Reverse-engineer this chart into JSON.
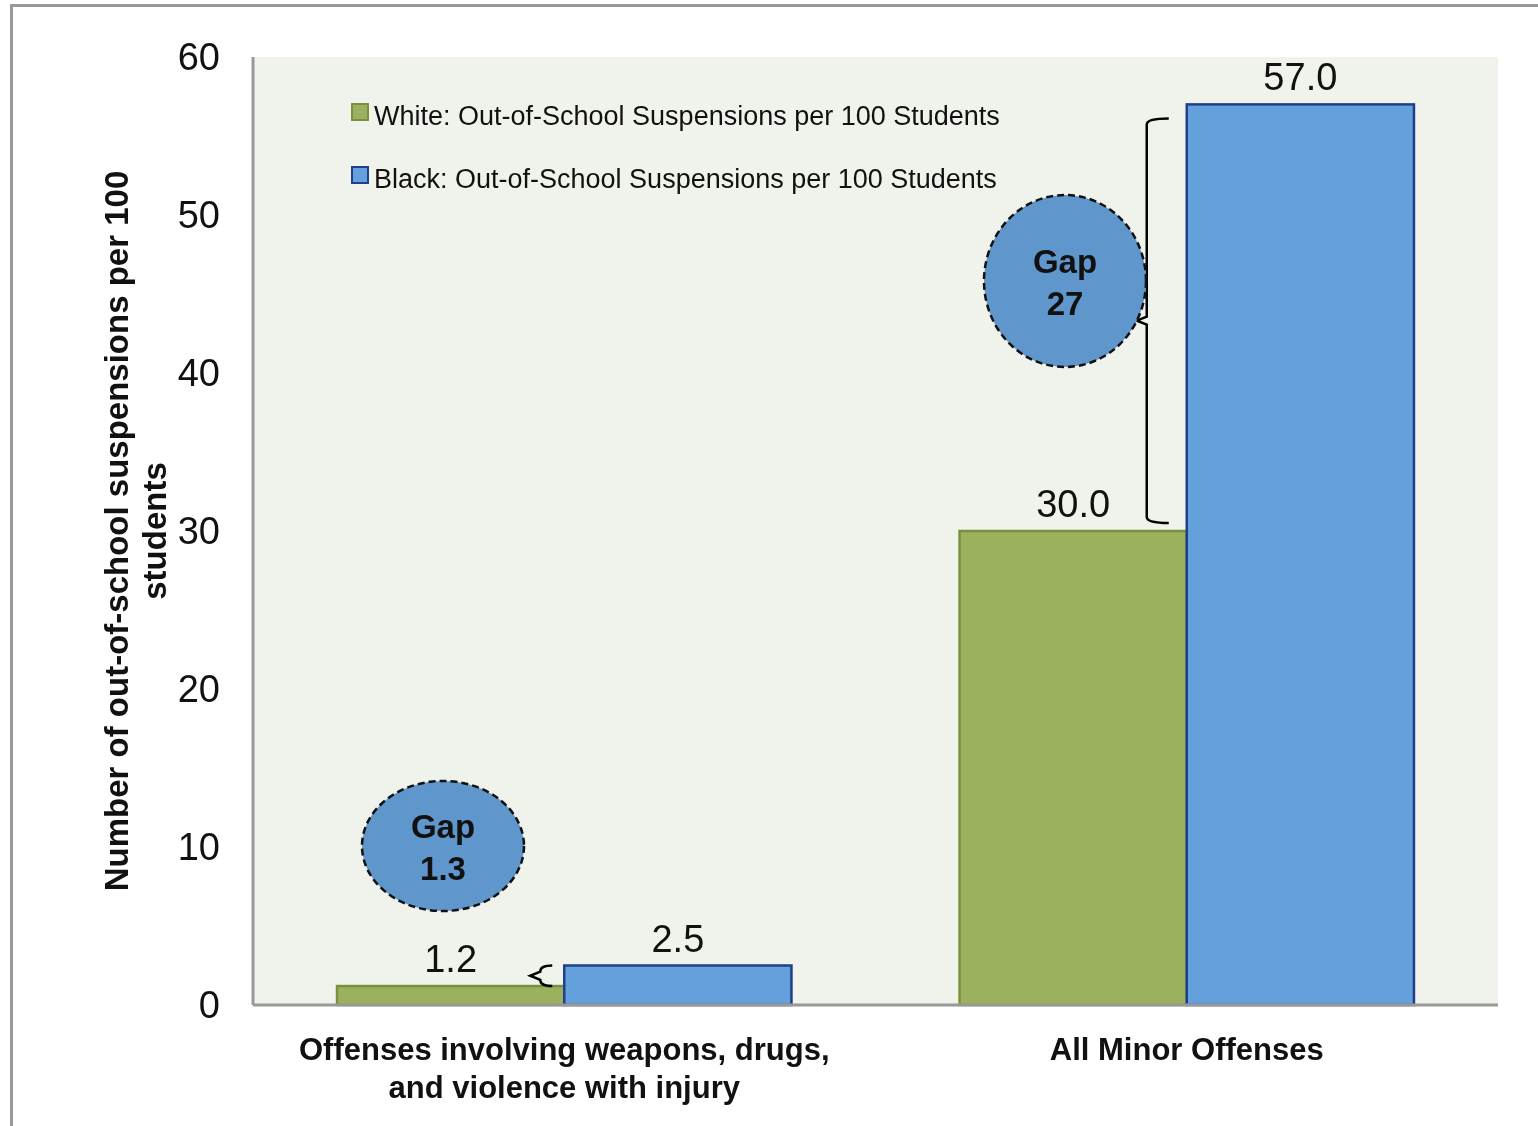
{
  "chart_data": {
    "type": "bar",
    "ylabel": "Number of out-of-school suspensions per 100 students",
    "categories": [
      "Offenses involving weapons, drugs, and violence with injury",
      "All Minor Offenses"
    ],
    "series": [
      {
        "name": "White: Out-of-School Suspensions per 100 Students",
        "color": "#9bb15e",
        "values": [
          1.2,
          30.0
        ],
        "value_labels": [
          "1.2",
          "30.0"
        ]
      },
      {
        "name": "Black: Out-of-School Suspensions per 100 Students",
        "color": "#63a0dc",
        "values": [
          2.5,
          57.0
        ],
        "value_labels": [
          "2.5",
          "57.0"
        ]
      }
    ],
    "ylim": [
      0,
      60
    ],
    "yticks": [
      0,
      10,
      20,
      30,
      40,
      50,
      60
    ],
    "grid": false,
    "legend": "top left",
    "annotations": [
      "Gap 1.3",
      "Gap 27"
    ]
  }
}
